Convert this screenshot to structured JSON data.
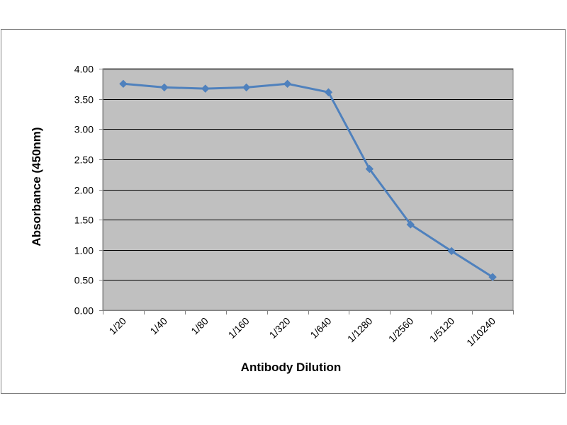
{
  "chart_data": {
    "type": "line",
    "title": "",
    "xlabel": "Antibody Dilution",
    "ylabel": "Absorbance (450nm)",
    "categories": [
      "1/20",
      "1/40",
      "1/80",
      "1/160",
      "1/320",
      "1/640",
      "1/1280",
      "1/2560",
      "1/5120",
      "1/10240"
    ],
    "series": [
      {
        "values": [
          3.75,
          3.69,
          3.67,
          3.69,
          3.75,
          3.61,
          2.34,
          1.42,
          0.98,
          0.55
        ]
      }
    ],
    "ylim": [
      0,
      4
    ],
    "yticks": [
      "0.00",
      "0.50",
      "1.00",
      "1.50",
      "2.00",
      "2.50",
      "3.00",
      "3.50",
      "4.00"
    ],
    "grid": true,
    "legend": "none",
    "colors": {
      "plot_background": "#c0c0c0",
      "line": "#4f81bd",
      "marker": "#4f81bd",
      "gridline": "#000000"
    }
  }
}
